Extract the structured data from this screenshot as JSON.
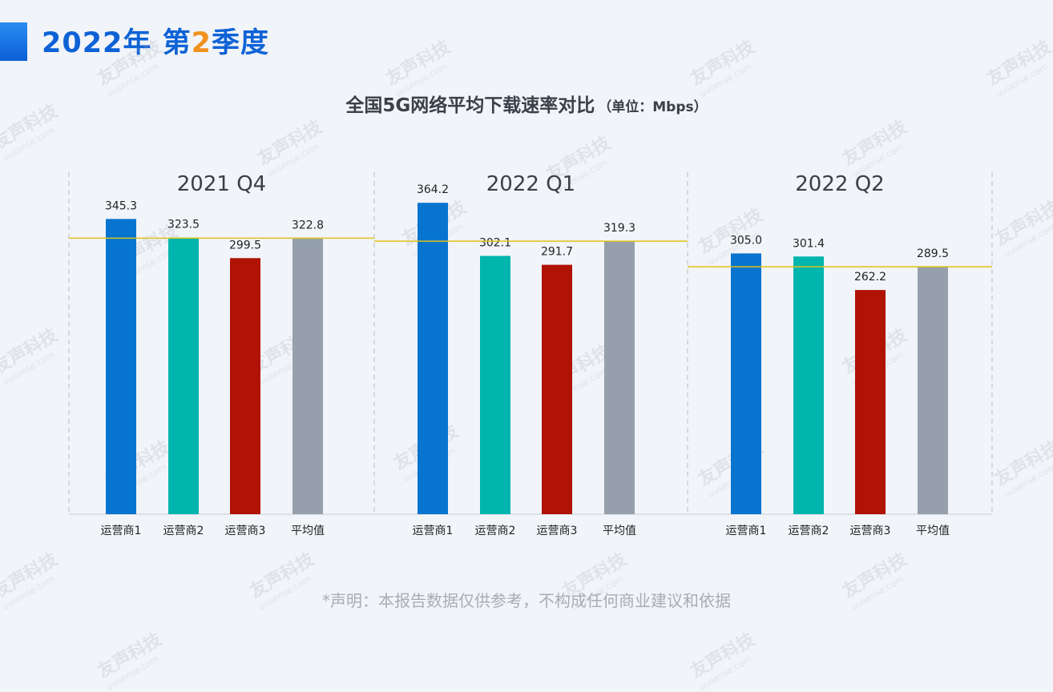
{
  "header": {
    "title_prefix": "2022年 第",
    "title_num": "2",
    "title_suffix": "季度",
    "accent_color": "#0e62d6",
    "highlight_color": "#f0921e"
  },
  "watermark": {
    "brand": "友声科技",
    "site": "uusense.com"
  },
  "disclaimer": "*声明：本报告数据仅供参考，不构成任何商业建议和依据",
  "chart_data": {
    "type": "bar",
    "title": "全国5G网络平均下载速率对比",
    "unit_label": "（单位：Mbps）",
    "categories": [
      "运营商1",
      "运营商2",
      "运营商3",
      "平均值"
    ],
    "colors": [
      "#0774cf",
      "#00b5ad",
      "#b01204",
      "#96a0ad"
    ],
    "reference_line_color": "#e0c21a",
    "ylim": [
      0,
      400
    ],
    "groups": [
      {
        "name": "2021 Q4",
        "values": [
          345.3,
          323.5,
          299.5,
          322.8
        ],
        "labels": [
          "345.3",
          "323.5",
          "299.5",
          "322.8"
        ],
        "average": 322.8
      },
      {
        "name": "2022 Q1",
        "values": [
          364.2,
          302.1,
          291.7,
          319.3
        ],
        "labels": [
          "364.2",
          "302.1",
          "291.7",
          "319.3"
        ],
        "average": 319.3
      },
      {
        "name": "2022 Q2",
        "values": [
          305.0,
          301.4,
          262.2,
          289.5
        ],
        "labels": [
          "305.0",
          "301.4",
          "262.2",
          "289.5"
        ],
        "average": 289.5
      }
    ]
  }
}
